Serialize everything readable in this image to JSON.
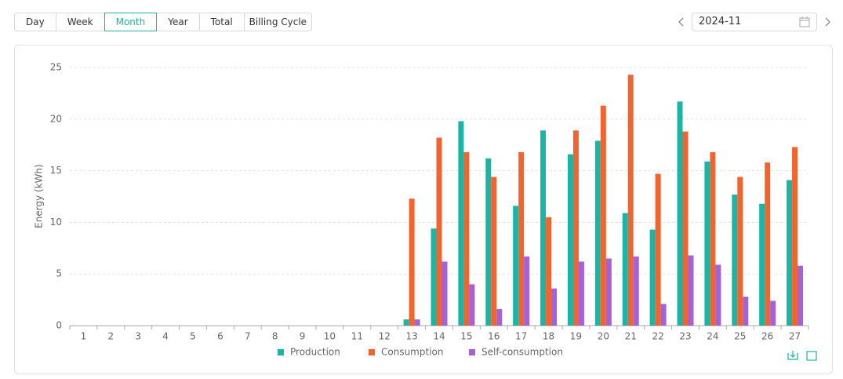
{
  "tabs": [
    "Day",
    "Week",
    "Month",
    "Year",
    "Total",
    "Billing Cycle"
  ],
  "date": "2024-11",
  "chart_data": {
    "type": "bar",
    "y_label": "Energy (kWh)",
    "categories": [
      "1",
      "2",
      "3",
      "4",
      "5",
      "6",
      "7",
      "8",
      "9",
      "10",
      "11",
      "12",
      "13",
      "14",
      "15",
      "16",
      "17",
      "18",
      "19",
      "20",
      "21",
      "22",
      "23",
      "24",
      "25",
      "26",
      "27"
    ],
    "series": [
      {
        "name": "Production",
        "color": "#1ab5a5",
        "values": [
          null,
          null,
          null,
          null,
          null,
          null,
          null,
          null,
          null,
          null,
          null,
          null,
          0.6,
          9.4,
          19.8,
          16.2,
          11.6,
          18.9,
          16.6,
          17.9,
          10.9,
          9.3,
          21.7,
          15.9,
          12.7,
          11.8,
          14.1
        ]
      },
      {
        "name": "Consumption",
        "color": "#f0652f",
        "values": [
          null,
          null,
          null,
          null,
          null,
          null,
          null,
          null,
          null,
          null,
          null,
          null,
          12.3,
          18.2,
          16.8,
          14.4,
          16.8,
          10.5,
          18.9,
          21.3,
          24.3,
          14.7,
          18.8,
          16.8,
          14.4,
          15.8,
          17.3
        ]
      },
      {
        "name": "Self-consumption",
        "color": "#a561d6",
        "values": [
          null,
          null,
          null,
          null,
          null,
          null,
          null,
          null,
          null,
          null,
          null,
          null,
          0.6,
          6.2,
          4.0,
          1.6,
          6.7,
          3.6,
          6.2,
          6.5,
          6.7,
          2.1,
          6.8,
          5.9,
          2.8,
          2.4,
          5.8
        ]
      }
    ],
    "ylim": [
      0,
      25
    ],
    "yticks": [
      0,
      5,
      10,
      15,
      20,
      25
    ],
    "grid": true
  }
}
